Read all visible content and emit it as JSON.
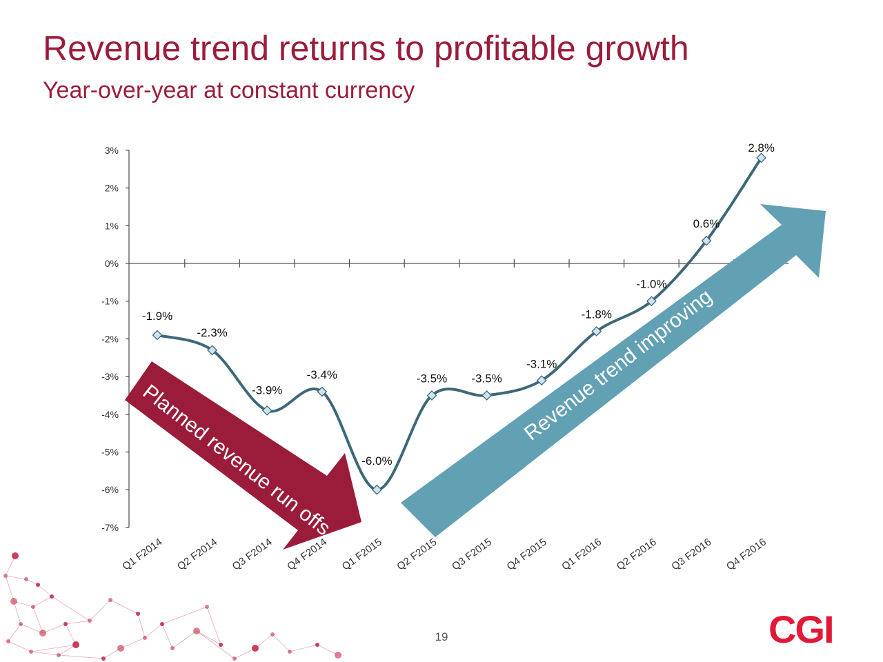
{
  "title": "Revenue trend returns to profitable growth",
  "subtitle": "Year-over-year at constant currency",
  "page_number": "19",
  "logo_text": "CGI",
  "colors": {
    "title": "#9b1c3a",
    "line": "#3d6878",
    "marker_fill": "#cfe3ee",
    "arrow_down": "#9b1c3a",
    "arrow_up": "#62a0b4",
    "logo": "#e11937",
    "network_decoration": "#c7294a"
  },
  "arrows": {
    "down_label": "Planned revenue run offs",
    "up_label": "Revenue trend improving"
  },
  "chart_data": {
    "type": "line",
    "categories": [
      "Q1 F2014",
      "Q2 F2014",
      "Q3 F2014",
      "Q4 F2014",
      "Q1 F2015",
      "Q2 F2015",
      "Q3 F2015",
      "Q4 F2015",
      "Q1 F2016",
      "Q2 F2016",
      "Q3 F2016",
      "Q4 F2016"
    ],
    "values": [
      -1.9,
      -2.3,
      -3.9,
      -3.4,
      -6.0,
      -3.5,
      -3.5,
      -3.1,
      -1.8,
      -1.0,
      0.6,
      2.8
    ],
    "data_labels": [
      "-1.9%",
      "-2.3%",
      "-3.9%",
      "-3.4%",
      "-6.0%",
      "-3.5%",
      "-3.5%",
      "-3.1%",
      "-1.8%",
      "-1.0%",
      "0.6%",
      "2.8%"
    ],
    "y_ticks": [
      3,
      2,
      1,
      0,
      -1,
      -2,
      -3,
      -4,
      -5,
      -6,
      -7
    ],
    "y_tick_labels": [
      "3%",
      "2%",
      "1%",
      "0%",
      "-1%",
      "-2%",
      "-3%",
      "-4%",
      "-5%",
      "-6%",
      "-7%"
    ],
    "ylim": [
      -7,
      3
    ],
    "smooth": true,
    "grid": false,
    "marker": "diamond"
  }
}
